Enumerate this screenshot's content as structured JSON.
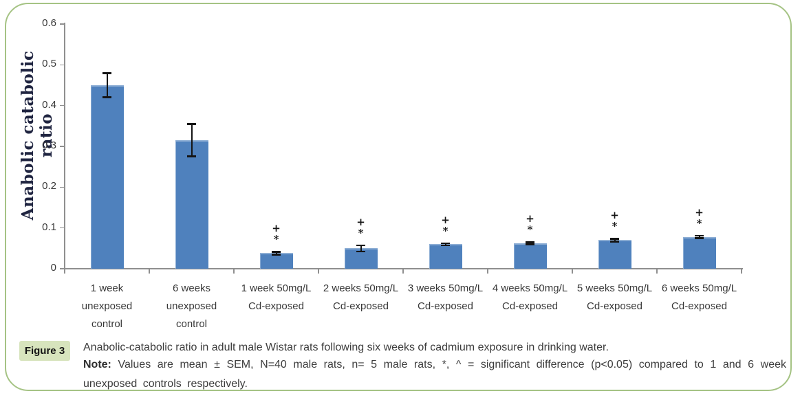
{
  "figure": {
    "label": "Figure 3",
    "caption": "Anabolic-catabolic ratio in adult male Wistar rats following six weeks of cadmium exposure in drinking water.",
    "note_label": "Note:",
    "note_text": "Values are mean ± SEM, N=40 male rats, n= 5 male rats, *, ^ = significant difference (p<0.05) compared to 1 and 6 week unexposed controls respectively."
  },
  "colors": {
    "bar_color": "#4f81bd",
    "axis_color": "#8f8f8f",
    "error_color": "#141414",
    "border_color": "#a5c384",
    "badge_bg": "#d7e4bd",
    "text_color": "#3c3c3c",
    "tick_text_color": "#383838",
    "ytitle_color": "#1f2440"
  },
  "chart_data": {
    "type": "bar",
    "title": "",
    "ylabel": "Anabolic catabolic ratio",
    "xlabel": "",
    "ylim": [
      0,
      0.6
    ],
    "yticks": [
      0,
      0.1,
      0.2,
      0.3,
      0.4,
      0.5,
      0.6
    ],
    "ytick_labels": [
      "0",
      "0.1",
      "0.2",
      "0.3",
      "0.4",
      "0.5",
      "0.6"
    ],
    "grid": false,
    "legend": false,
    "error_type": "SEM",
    "categories": [
      [
        "1 week",
        "unexposed",
        "control"
      ],
      [
        "6 weeks",
        "unexposed",
        "control"
      ],
      [
        "1 week 50mg/L",
        "Cd-exposed"
      ],
      [
        "2 weeks 50mg/L",
        "Cd-exposed"
      ],
      [
        "3 weeks 50mg/L",
        "Cd-exposed"
      ],
      [
        "4 weeks 50mg/L",
        "Cd-exposed"
      ],
      [
        "5 weeks 50mg/L",
        "Cd-exposed"
      ],
      [
        "6 weeks 50mg/L",
        "Cd-exposed"
      ]
    ],
    "values": [
      0.45,
      0.315,
      0.038,
      0.05,
      0.06,
      0.062,
      0.07,
      0.078
    ],
    "errors": [
      0.03,
      0.04,
      0.004,
      0.008,
      0.003,
      0.003,
      0.004,
      0.003
    ],
    "annotations": [
      [],
      [],
      [
        "+",
        "*"
      ],
      [
        "+",
        "*"
      ],
      [
        "+",
        "*"
      ],
      [
        "+",
        "*"
      ],
      [
        "+",
        "*"
      ],
      [
        "+",
        "*"
      ]
    ]
  }
}
